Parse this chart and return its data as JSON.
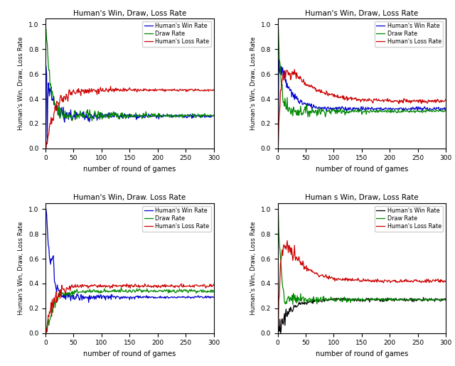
{
  "titles": [
    "Human's Win, Draw, Loss Rate",
    "Human's Win, Draw, Loss Rate",
    "Human's Win, Draw. Loss Rate",
    "Human s Win, Draw, Loss Rate"
  ],
  "xlabel": "number of round of games",
  "ylabel": "Human's Win, Draw, Loss Rate",
  "legend_labels_123": [
    "Human's Win Rate",
    "Draw Rate",
    "Human's Loss Rate"
  ],
  "legend_labels_4": [
    "Human's Win Rate",
    "Draw Rate",
    "Human's Loss Rate"
  ],
  "colors_123": [
    "#0000cc",
    "#008800",
    "#cc0000"
  ],
  "colors_4": [
    "#000000",
    "#008800",
    "#cc0000"
  ],
  "xlim": [
    0,
    300
  ],
  "ylim": [
    0.0,
    1.0
  ],
  "figsize": [
    6.4,
    5.15
  ],
  "dpi": 100
}
